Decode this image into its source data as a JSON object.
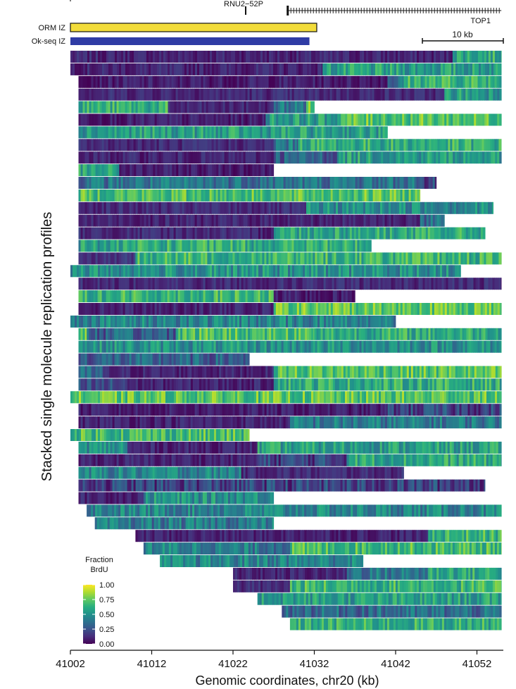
{
  "chart_data": {
    "type": "heatmap",
    "title": "",
    "xlabel": "Genomic coordinates, chr20 (kb)",
    "ylabel": "Stacked single molecule replication profiles",
    "xlim": [
      41002,
      41055
    ],
    "x_ticks": [
      41002,
      41012,
      41022,
      41032,
      41042,
      41052
    ],
    "x_tick_labels": [
      "41002",
      "41012",
      "41022",
      "41032",
      "41042",
      "41052"
    ],
    "genes": [
      {
        "name": "RNU2−52P",
        "pos_kb": 41023.2
      },
      {
        "name": "TOP1",
        "start_kb": 41028.6,
        "end_kb": 41055
      }
    ],
    "zones": [
      {
        "name": "ORM IZ",
        "start_kb": 41002,
        "end_kb": 41032.3,
        "color": "#f2dc3a"
      },
      {
        "name": "Ok-seq IZ",
        "start_kb": 41002,
        "end_kb": 41031.4,
        "color": "#2f3ca5"
      }
    ],
    "scale_bar": {
      "label": "10 kb",
      "length_kb": 10
    },
    "colorbar": {
      "title": "Fraction\nBrdU",
      "title_lines": [
        "Fraction",
        "BrdU"
      ],
      "range": [
        0,
        1
      ],
      "ticks": [
        1.0,
        0.75,
        0.5,
        0.25,
        0.0
      ],
      "tick_labels": [
        "1.00",
        "0.75",
        "0.50",
        "0.25",
        "0.00"
      ],
      "colormap": "viridis"
    },
    "series_note": "rows = single molecules, top to bottom; segments = [start_kb, end_kb, approximate mean fraction BrdU]",
    "rows": [
      [
        [
          41002,
          41049,
          0.1
        ],
        [
          41049,
          41055,
          0.6
        ]
      ],
      [
        [
          41002,
          41033,
          0.1
        ],
        [
          41033,
          41055,
          0.55
        ]
      ],
      [
        [
          41003,
          41041,
          0.08
        ],
        [
          41041,
          41043,
          0.35
        ],
        [
          41043,
          41055,
          0.65
        ]
      ],
      [
        [
          41003,
          41048,
          0.12
        ],
        [
          41048,
          41055,
          0.55
        ]
      ],
      [
        [
          41003,
          41014,
          0.62
        ],
        [
          41014,
          41027,
          0.1
        ],
        [
          41027,
          41031,
          0.4
        ],
        [
          41031,
          41032,
          0.72
        ]
      ],
      [
        [
          41003,
          41026,
          0.08
        ],
        [
          41026,
          41035,
          0.55
        ],
        [
          41035,
          41055,
          0.72
        ]
      ],
      [
        [
          41003,
          41041,
          0.55
        ]
      ],
      [
        [
          41003,
          41027,
          0.12
        ],
        [
          41027,
          41030,
          0.4
        ],
        [
          41030,
          41055,
          0.62
        ]
      ],
      [
        [
          41003,
          41027,
          0.1
        ],
        [
          41027,
          41035,
          0.3
        ],
        [
          41035,
          41055,
          0.55
        ]
      ],
      [
        [
          41003,
          41008,
          0.55
        ],
        [
          41008,
          41027,
          0.08
        ]
      ],
      [
        [
          41003,
          41045,
          0.38
        ],
        [
          41045,
          41047,
          0.2
        ]
      ],
      [
        [
          41003,
          41034,
          0.7
        ],
        [
          41034,
          41045,
          0.72
        ]
      ],
      [
        [
          41003,
          41031,
          0.12
        ],
        [
          41031,
          41054,
          0.48
        ]
      ],
      [
        [
          41003,
          41045,
          0.1
        ],
        [
          41045,
          41048,
          0.35
        ]
      ],
      [
        [
          41003,
          41022,
          0.12
        ],
        [
          41022,
          41027,
          0.1
        ],
        [
          41027,
          41053,
          0.6
        ]
      ],
      [
        [
          41003,
          41010,
          0.55
        ],
        [
          41010,
          41039,
          0.62
        ]
      ],
      [
        [
          41003,
          41010,
          0.15
        ],
        [
          41010,
          41055,
          0.65
        ]
      ],
      [
        [
          41002,
          41050,
          0.5
        ]
      ],
      [
        [
          41003,
          41055,
          0.12
        ]
      ],
      [
        [
          41003,
          41027,
          0.65
        ],
        [
          41027,
          41037,
          0.08
        ]
      ],
      [
        [
          41003,
          41027,
          0.1
        ],
        [
          41027,
          41055,
          0.75
        ]
      ],
      [
        [
          41002,
          41042,
          0.45
        ]
      ],
      [
        [
          41003,
          41004,
          0.72
        ],
        [
          41004,
          41015,
          0.3
        ],
        [
          41015,
          41032,
          0.7
        ],
        [
          41032,
          41055,
          0.62
        ]
      ],
      [
        [
          41003,
          41055,
          0.5
        ]
      ],
      [
        [
          41003,
          41024,
          0.3
        ]
      ],
      [
        [
          41003,
          41006,
          0.3
        ],
        [
          41006,
          41027,
          0.1
        ],
        [
          41027,
          41055,
          0.72
        ]
      ],
      [
        [
          41003,
          41009,
          0.2
        ],
        [
          41009,
          41027,
          0.1
        ],
        [
          41027,
          41055,
          0.62
        ]
      ],
      [
        [
          41002,
          41055,
          0.72
        ]
      ],
      [
        [
          41003,
          41041,
          0.08
        ],
        [
          41041,
          41055,
          0.2
        ]
      ],
      [
        [
          41003,
          41029,
          0.1
        ],
        [
          41029,
          41055,
          0.4
        ]
      ],
      [
        [
          41002,
          41024,
          0.68
        ]
      ],
      [
        [
          41003,
          41009,
          0.5
        ],
        [
          41009,
          41025,
          0.1
        ],
        [
          41025,
          41055,
          0.55
        ]
      ],
      [
        [
          41003,
          41025,
          0.1
        ],
        [
          41025,
          41036,
          0.2
        ],
        [
          41036,
          41055,
          0.6
        ]
      ],
      [
        [
          41003,
          41023,
          0.45
        ],
        [
          41023,
          41043,
          0.12
        ]
      ],
      [
        [
          41003,
          41053,
          0.2
        ]
      ],
      [
        [
          41003,
          41011,
          0.1
        ],
        [
          41011,
          41027,
          0.5
        ]
      ],
      [
        [
          41004,
          41055,
          0.45
        ]
      ],
      [
        [
          41005,
          41027,
          0.4
        ]
      ],
      [
        [
          41010,
          41046,
          0.1
        ],
        [
          41046,
          41055,
          0.65
        ]
      ],
      [
        [
          41011,
          41020,
          0.45
        ],
        [
          41020,
          41029,
          0.4
        ],
        [
          41029,
          41055,
          0.68
        ]
      ],
      [
        [
          41013,
          41038,
          0.45
        ]
      ],
      [
        [
          41022,
          41036,
          0.1
        ],
        [
          41036,
          41046,
          0.4
        ],
        [
          41046,
          41055,
          0.6
        ]
      ],
      [
        [
          41022,
          41029,
          0.12
        ],
        [
          41029,
          41055,
          0.65
        ]
      ],
      [
        [
          41025,
          41055,
          0.55
        ]
      ],
      [
        [
          41028,
          41055,
          0.35
        ]
      ],
      [
        [
          41029,
          41055,
          0.62
        ]
      ]
    ]
  }
}
